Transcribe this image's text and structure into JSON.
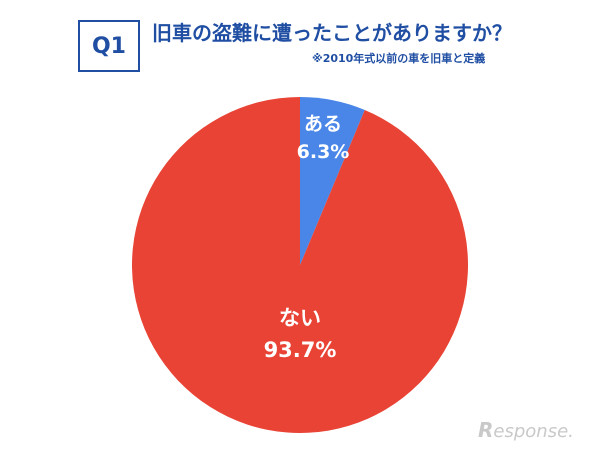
{
  "header": {
    "q_label": "Q1",
    "title": "旧車の盗難に遭ったことがありますか？",
    "subtitle": "※2010年式以前の車を旧車と定義"
  },
  "chart_data": {
    "type": "pie",
    "title": "旧車の盗難に遭ったことがありますか？",
    "slices": [
      {
        "label": "ある",
        "value": 6.3,
        "display": "6.3%",
        "color": "#4a86e8"
      },
      {
        "label": "ない",
        "value": 93.7,
        "display": "93.7%",
        "color": "#e84335"
      }
    ],
    "start": "12 o'clock",
    "direction": "clockwise",
    "legend": "none"
  },
  "watermark": {
    "text": "esponse.",
    "logo_letter": "R"
  }
}
